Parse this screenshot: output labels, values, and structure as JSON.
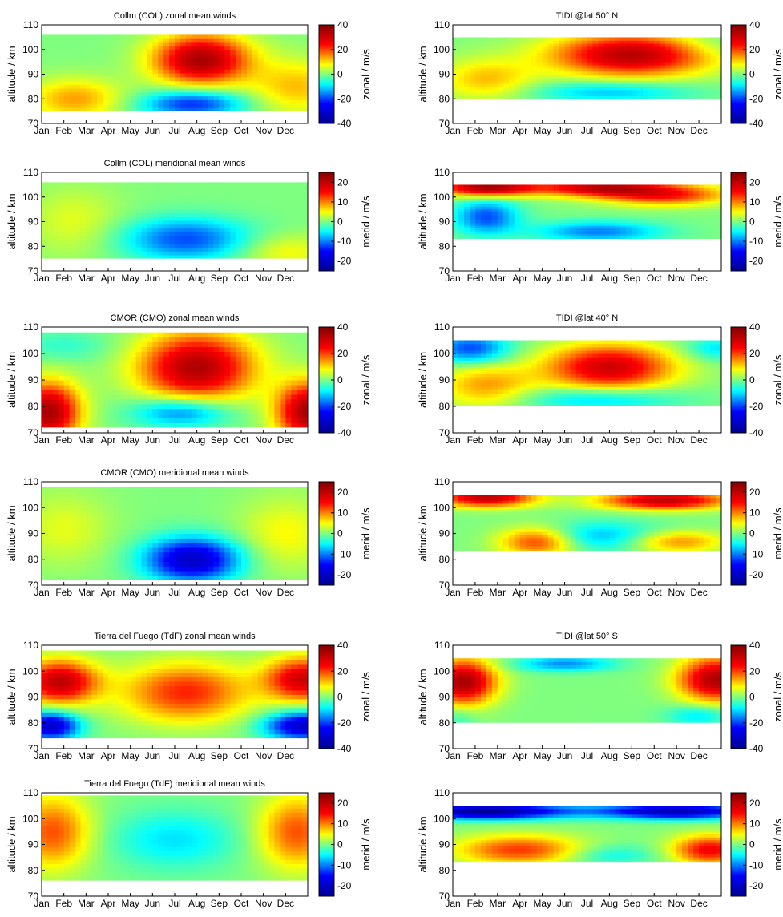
{
  "months": [
    "Jan",
    "Feb",
    "Mar",
    "Apr",
    "May",
    "Jun",
    "Jul",
    "Aug",
    "Sep",
    "Oct",
    "Nov",
    "Dec"
  ],
  "ylabel": "altitude / km",
  "y_ticks": [
    70,
    80,
    90,
    100,
    110
  ],
  "zonal_cbar": {
    "label": "zonal / m/s",
    "ticks": [
      40,
      20,
      0,
      -20,
      -40
    ],
    "range": [
      -40,
      40
    ]
  },
  "merid_cbar": {
    "label": "merid / m/s",
    "ticks": [
      20,
      10,
      0,
      -10,
      -20
    ],
    "range": [
      -25,
      25
    ]
  },
  "colormap": [
    "#00008f",
    "#0000ff",
    "#00ffff",
    "#ffff00",
    "#ff0000",
    "#800000"
  ],
  "chart_data": [
    {
      "type": "heatmap",
      "title": "Collm (COL) zonal mean winds",
      "kind": "zonal",
      "ylim": [
        70,
        110
      ],
      "xlabel": "",
      "ylabel": "altitude / km",
      "coverage": {
        "alt_min": 75,
        "alt_max": 106
      },
      "features": [
        {
          "month": 7.2,
          "alt": 96,
          "value": 35,
          "spread_month": 1.5,
          "spread_alt": 7
        },
        {
          "month": 6.8,
          "alt": 78,
          "value": -22,
          "spread_month": 1.6,
          "spread_alt": 4
        },
        {
          "month": 1.5,
          "alt": 80,
          "value": 14,
          "spread_month": 1.5,
          "spread_alt": 6
        },
        {
          "month": 11.5,
          "alt": 85,
          "value": 12,
          "spread_month": 1.5,
          "spread_alt": 8
        }
      ]
    },
    {
      "type": "heatmap",
      "title": "TIDI @lat 50° N",
      "kind": "zonal",
      "ylim": [
        70,
        110
      ],
      "xlabel": "",
      "ylabel": "altitude / km",
      "coverage": {
        "alt_min": 80,
        "alt_max": 105
      },
      "features": [
        {
          "month": 8.0,
          "alt": 98,
          "value": 33,
          "spread_month": 2.5,
          "spread_alt": 6
        },
        {
          "month": 7.0,
          "alt": 83,
          "value": -12,
          "spread_month": 2.5,
          "spread_alt": 3
        },
        {
          "month": 1.5,
          "alt": 88,
          "value": 12,
          "spread_month": 1.5,
          "spread_alt": 6
        },
        {
          "month": 11.5,
          "alt": 102,
          "value": -5,
          "spread_month": 1.5,
          "spread_alt": 4
        }
      ]
    },
    {
      "type": "heatmap",
      "title": "Collm (COL) meridional mean winds",
      "kind": "merid",
      "ylim": [
        70,
        110
      ],
      "xlabel": "",
      "ylabel": "altitude / km",
      "coverage": {
        "alt_min": 75,
        "alt_max": 106
      },
      "features": [
        {
          "month": 6.5,
          "alt": 83,
          "value": -12,
          "spread_month": 2.0,
          "spread_alt": 6
        },
        {
          "month": 1.5,
          "alt": 90,
          "value": 4,
          "spread_month": 1.5,
          "spread_alt": 10
        },
        {
          "month": 11.0,
          "alt": 78,
          "value": 5,
          "spread_month": 1.5,
          "spread_alt": 5
        }
      ]
    },
    {
      "type": "heatmap",
      "title": "",
      "kind": "merid",
      "ylim": [
        70,
        110
      ],
      "xlabel": "",
      "ylabel": "altitude / km",
      "coverage": {
        "alt_min": 83,
        "alt_max": 105
      },
      "features": [
        {
          "month": 1.5,
          "alt": 104,
          "value": 22,
          "spread_month": 1.5,
          "spread_alt": 2.5
        },
        {
          "month": 6.5,
          "alt": 104,
          "value": 18,
          "spread_month": 2.0,
          "spread_alt": 2.5
        },
        {
          "month": 1.5,
          "alt": 92,
          "value": -12,
          "spread_month": 1.0,
          "spread_alt": 5
        },
        {
          "month": 6.5,
          "alt": 86,
          "value": -10,
          "spread_month": 2.0,
          "spread_alt": 3
        },
        {
          "month": 9.5,
          "alt": 101,
          "value": 14,
          "spread_month": 2.0,
          "spread_alt": 3
        }
      ]
    },
    {
      "type": "heatmap",
      "title": "CMOR (CMO) zonal mean winds",
      "kind": "zonal",
      "ylim": [
        70,
        110
      ],
      "xlabel": "",
      "ylabel": "altitude / km",
      "coverage": {
        "alt_min": 72,
        "alt_max": 108
      },
      "features": [
        {
          "month": 7.0,
          "alt": 95,
          "value": 34,
          "spread_month": 1.8,
          "spread_alt": 9
        },
        {
          "month": 6.3,
          "alt": 78,
          "value": -18,
          "spread_month": 1.5,
          "spread_alt": 4
        },
        {
          "month": 0.3,
          "alt": 78,
          "value": 35,
          "spread_month": 1.0,
          "spread_alt": 8
        },
        {
          "month": 12.0,
          "alt": 78,
          "value": 35,
          "spread_month": 1.0,
          "spread_alt": 8
        },
        {
          "month": 1.0,
          "alt": 103,
          "value": -5,
          "spread_month": 1.5,
          "spread_alt": 4
        }
      ]
    },
    {
      "type": "heatmap",
      "title": "TIDI @lat 40° N",
      "kind": "zonal",
      "ylim": [
        70,
        110
      ],
      "xlabel": "",
      "ylabel": "altitude / km",
      "coverage": {
        "alt_min": 80,
        "alt_max": 105
      },
      "features": [
        {
          "month": 7.0,
          "alt": 95,
          "value": 30,
          "spread_month": 2.0,
          "spread_alt": 6
        },
        {
          "month": 6.5,
          "alt": 83,
          "value": -12,
          "spread_month": 2.5,
          "spread_alt": 3
        },
        {
          "month": 0.8,
          "alt": 102,
          "value": -20,
          "spread_month": 1.2,
          "spread_alt": 4
        },
        {
          "month": 1.5,
          "alt": 88,
          "value": 14,
          "spread_month": 1.5,
          "spread_alt": 6
        },
        {
          "month": 11.8,
          "alt": 102,
          "value": -10,
          "spread_month": 1.0,
          "spread_alt": 3
        }
      ]
    },
    {
      "type": "heatmap",
      "title": "CMOR (CMO) meridional mean winds",
      "kind": "merid",
      "ylim": [
        70,
        110
      ],
      "xlabel": "",
      "ylabel": "altitude / km",
      "coverage": {
        "alt_min": 72,
        "alt_max": 108
      },
      "features": [
        {
          "month": 6.8,
          "alt": 80,
          "value": -20,
          "spread_month": 1.5,
          "spread_alt": 6
        },
        {
          "month": 1.0,
          "alt": 92,
          "value": 4,
          "spread_month": 1.5,
          "spread_alt": 10
        },
        {
          "month": 11.0,
          "alt": 90,
          "value": 5,
          "spread_month": 1.5,
          "spread_alt": 10
        }
      ]
    },
    {
      "type": "heatmap",
      "title": "",
      "kind": "merid",
      "ylim": [
        70,
        110
      ],
      "xlabel": "",
      "ylabel": "altitude / km",
      "coverage": {
        "alt_min": 83,
        "alt_max": 105
      },
      "features": [
        {
          "month": 1.5,
          "alt": 104,
          "value": 20,
          "spread_month": 1.5,
          "spread_alt": 2.5
        },
        {
          "month": 9.5,
          "alt": 103,
          "value": 20,
          "spread_month": 2.0,
          "spread_alt": 2.5
        },
        {
          "month": 3.8,
          "alt": 87,
          "value": 14,
          "spread_month": 1.2,
          "spread_alt": 4
        },
        {
          "month": 6.5,
          "alt": 89,
          "value": -8,
          "spread_month": 2.0,
          "spread_alt": 4
        },
        {
          "month": 10.0,
          "alt": 87,
          "value": 10,
          "spread_month": 1.5,
          "spread_alt": 3
        }
      ]
    },
    {
      "type": "heatmap",
      "title": "Tierra del Fuego (TdF) zonal mean winds",
      "kind": "zonal",
      "ylim": [
        70,
        110
      ],
      "xlabel": "",
      "ylabel": "altitude / km",
      "coverage": {
        "alt_min": 74,
        "alt_max": 108
      },
      "features": [
        {
          "month": 0.8,
          "alt": 96,
          "value": 32,
          "spread_month": 1.2,
          "spread_alt": 6
        },
        {
          "month": 11.8,
          "alt": 97,
          "value": 30,
          "spread_month": 1.2,
          "spread_alt": 6
        },
        {
          "month": 0.4,
          "alt": 79,
          "value": -32,
          "spread_month": 0.9,
          "spread_alt": 4
        },
        {
          "month": 11.8,
          "alt": 79,
          "value": -32,
          "spread_month": 1.2,
          "spread_alt": 4
        },
        {
          "month": 6.5,
          "alt": 92,
          "value": 22,
          "spread_month": 2.0,
          "spread_alt": 8
        }
      ]
    },
    {
      "type": "heatmap",
      "title": "TIDI @lat 50° S",
      "kind": "zonal",
      "ylim": [
        70,
        110
      ],
      "xlabel": "",
      "ylabel": "altitude / km",
      "coverage": {
        "alt_min": 80,
        "alt_max": 105
      },
      "features": [
        {
          "month": 0.5,
          "alt": 96,
          "value": 35,
          "spread_month": 1.0,
          "spread_alt": 6
        },
        {
          "month": 11.8,
          "alt": 97,
          "value": 34,
          "spread_month": 1.2,
          "spread_alt": 6
        },
        {
          "month": 5.0,
          "alt": 103,
          "value": -15,
          "spread_month": 1.5,
          "spread_alt": 2
        },
        {
          "month": 11.0,
          "alt": 83,
          "value": -10,
          "spread_month": 1.0,
          "spread_alt": 3
        },
        {
          "month": 0.2,
          "alt": 82,
          "value": -5,
          "spread_month": 0.6,
          "spread_alt": 3
        }
      ]
    },
    {
      "type": "heatmap",
      "title": "Tierra del Fuego (TdF) meridional mean winds",
      "kind": "merid",
      "ylim": [
        70,
        110
      ],
      "xlabel": "",
      "ylabel": "altitude / km",
      "coverage": {
        "alt_min": 76,
        "alt_max": 109
      },
      "features": [
        {
          "month": 0.5,
          "alt": 95,
          "value": 12,
          "spread_month": 1.2,
          "spread_alt": 10
        },
        {
          "month": 11.5,
          "alt": 95,
          "value": 12,
          "spread_month": 1.2,
          "spread_alt": 10
        },
        {
          "month": 6.0,
          "alt": 92,
          "value": -6,
          "spread_month": 2.0,
          "spread_alt": 8
        }
      ]
    },
    {
      "type": "heatmap",
      "title": "",
      "kind": "merid",
      "ylim": [
        70,
        110
      ],
      "xlabel": "",
      "ylabel": "altitude / km",
      "coverage": {
        "alt_min": 83,
        "alt_max": 105
      },
      "features": [
        {
          "month": 1.5,
          "alt": 103,
          "value": -25,
          "spread_month": 2.5,
          "spread_alt": 2
        },
        {
          "month": 10.0,
          "alt": 103,
          "value": -22,
          "spread_month": 2.5,
          "spread_alt": 2
        },
        {
          "month": 3.0,
          "alt": 88,
          "value": 13,
          "spread_month": 2.0,
          "spread_alt": 4
        },
        {
          "month": 11.5,
          "alt": 88,
          "value": 16,
          "spread_month": 1.2,
          "spread_alt": 4
        },
        {
          "month": 7.0,
          "alt": 86,
          "value": -5,
          "spread_month": 1.5,
          "spread_alt": 3
        }
      ]
    }
  ]
}
